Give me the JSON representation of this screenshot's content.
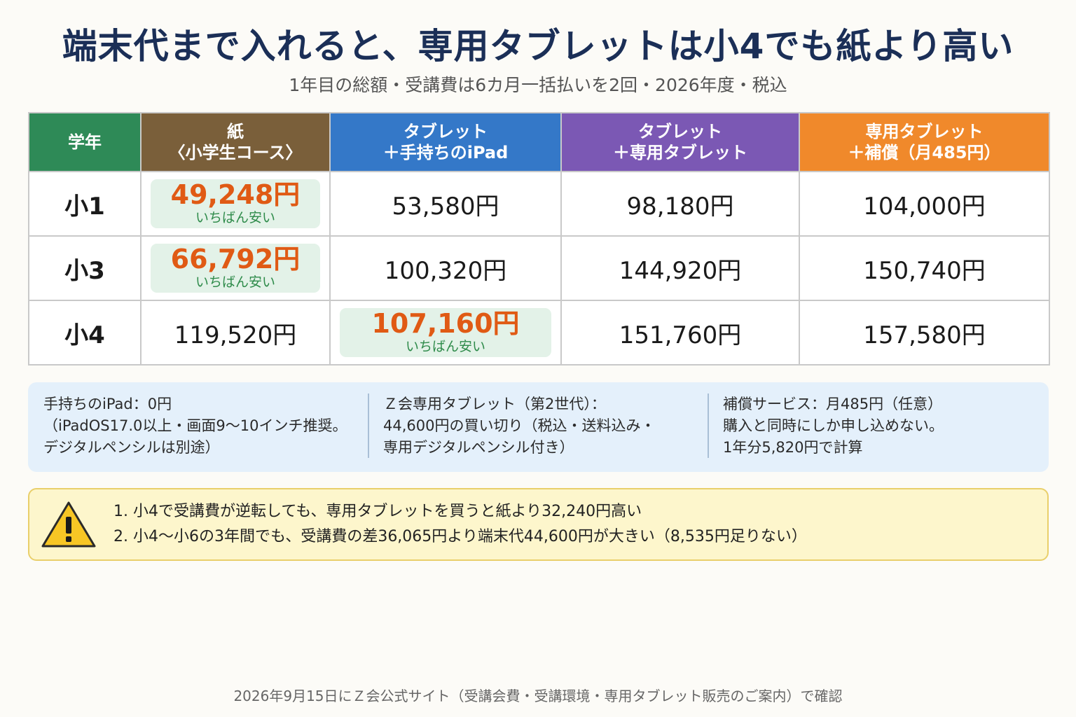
{
  "title": "端末代まで入れると、専用タブレットは小4でも紙より高い",
  "subtitle": "1年目の総額・受講費は6カ月一括払いを2回・2026年度・税込",
  "table": {
    "headers": [
      {
        "l1": "学年",
        "l2": "",
        "color": "#2e8a57"
      },
      {
        "l1": "紙",
        "l2": "〈小学生コース〉",
        "color": "#7a5f3a"
      },
      {
        "l1": "タブレット",
        "l2": "＋手持ちのiPad",
        "color": "#3478c8"
      },
      {
        "l1": "タブレット",
        "l2": "＋専用タブレット",
        "color": "#7b58b4"
      },
      {
        "l1": "専用タブレット",
        "l2": "＋補償（月485円）",
        "color": "#f0892b"
      }
    ],
    "highlight_tag": "いちばん安い",
    "rows": [
      {
        "grade": "小1",
        "paper": "49,248円",
        "ipad": "53,580円",
        "dedicated": "98,180円",
        "insurance": "104,000円"
      },
      {
        "grade": "小3",
        "paper": "66,792円",
        "ipad": "100,320円",
        "dedicated": "144,920円",
        "insurance": "150,740円"
      },
      {
        "grade": "小4",
        "paper": "119,520円",
        "ipad": "107,160円",
        "dedicated": "151,760円",
        "insurance": "157,580円"
      }
    ]
  },
  "info": {
    "col1": [
      "手持ちのiPad：0円",
      "（iPadOS17.0以上・画面9〜10インチ推奨。",
      "デジタルペンシルは別途）"
    ],
    "col2": [
      "Ｚ会専用タブレット（第2世代）：",
      "44,600円の買い切り（税込・送料込み・",
      "専用デジタルペンシル付き）"
    ],
    "col3": [
      "補償サービス：月485円（任意）",
      "購入と同時にしか申し込めない。",
      "1年分5,820円で計算"
    ]
  },
  "warning": {
    "icon": "warning-triangle-icon",
    "items": [
      "1. 小4で受講費が逆転しても、専用タブレットを買うと紙より32,240円高い",
      "2. 小4〜小6の3年間でも、受講費の差36,065円より端末代44,600円が大きい（8,535円足りない）"
    ]
  },
  "footer": "2026年9月15日にＺ会公式サイト（受講会費・受講環境・専用タブレット販売のご案内）で確認"
}
